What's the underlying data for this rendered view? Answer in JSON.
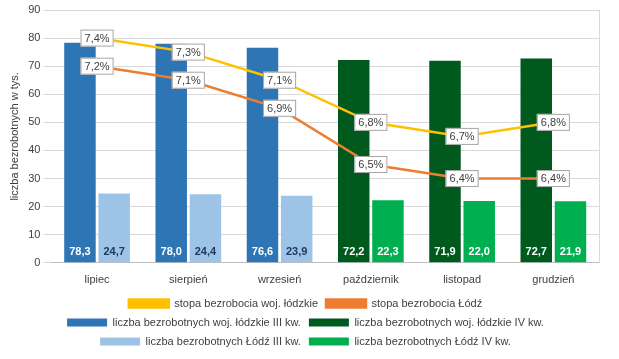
{
  "chart_data": {
    "type": "bar",
    "categories": [
      "lipiec",
      "sierpień",
      "wrzesień",
      "październik",
      "listopad",
      "grudzień"
    ],
    "y_label": "liczba bezrobotnych w tys.",
    "ylim": [
      0,
      90
    ],
    "yticks": [
      0,
      10,
      20,
      30,
      40,
      50,
      60,
      70,
      80,
      90
    ],
    "y2lim": [
      5.8,
      7.6
    ],
    "y2ticks": [],
    "grid": true,
    "legend": "bottom",
    "data_labels": true,
    "series": [
      {
        "name": "liczba bezrobotnych woj. łódzkie III kw.",
        "type": "bar",
        "color": "#2e75b6",
        "values": [
          78.3,
          78.0,
          76.6,
          null,
          null,
          null
        ],
        "value_labels": [
          "78,3",
          "78,0",
          "76,6",
          null,
          null,
          null
        ]
      },
      {
        "name": "liczba bezrobotnych woj. łódzkie IV kw.",
        "type": "bar",
        "color": "#005a1e",
        "values": [
          null,
          null,
          null,
          72.2,
          71.9,
          72.7
        ],
        "value_labels": [
          null,
          null,
          null,
          "72,2",
          "71,9",
          "72,7"
        ]
      },
      {
        "name": "liczba bezrobotnych Łódź III kw.",
        "type": "bar",
        "color": "#9dc3e6",
        "values": [
          24.7,
          24.4,
          23.9,
          null,
          null,
          null
        ],
        "value_labels": [
          "24,7",
          "24,4",
          "23,9",
          null,
          null,
          null
        ]
      },
      {
        "name": "liczba bezrobotnych Łódź IV kw.",
        "type": "bar",
        "color": "#00b050",
        "values": [
          null,
          null,
          null,
          22.3,
          22.0,
          21.9
        ],
        "value_labels": [
          null,
          null,
          null,
          "22,3",
          "22,0",
          "21,9"
        ]
      },
      {
        "name": "stopa bezrobocia woj. łódzkie",
        "type": "line",
        "axis": "y2",
        "color": "#ffc000",
        "marker": "circle",
        "line_style": "solid",
        "values": [
          7.4,
          7.3,
          7.1,
          6.8,
          6.7,
          6.8
        ],
        "value_labels": [
          "7,4%",
          "7,3%",
          "7,1%",
          "6,8%",
          "6,7%",
          "6,8%"
        ]
      },
      {
        "name": "stopa bezrobocia Łódź",
        "type": "line",
        "axis": "y2",
        "color": "#ed7d31",
        "marker": "circle",
        "line_style": "solid",
        "values": [
          7.2,
          7.1,
          6.9,
          6.5,
          6.4,
          6.4
        ],
        "value_labels": [
          "7,2%",
          "7,1%",
          "6,9%",
          "6,5%",
          "6,4%",
          "6,4%"
        ]
      }
    ]
  }
}
